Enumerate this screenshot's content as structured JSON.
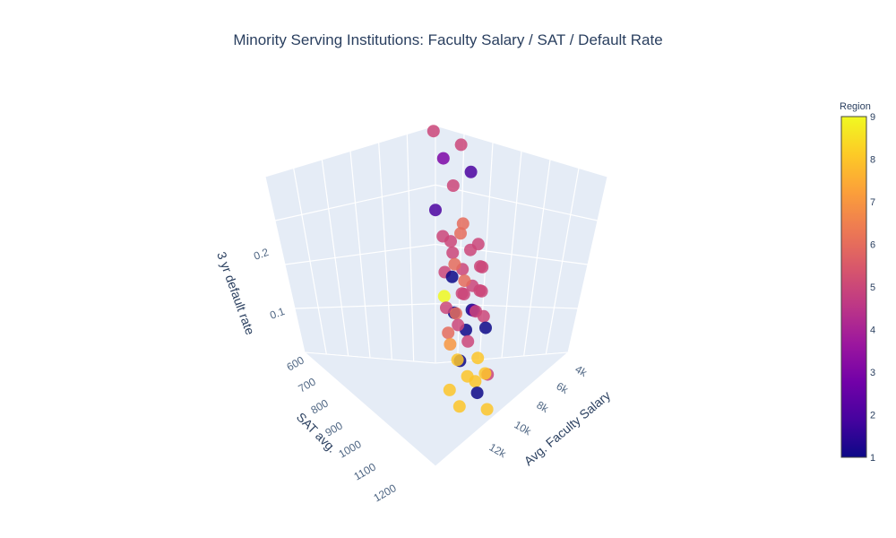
{
  "chart_data": {
    "type": "scatter3d",
    "title": "Minority Serving Institutions: Faculty Salary / SAT / Default Rate",
    "x_label": "Avg. Faculty Salary",
    "y_label": "SAT avg.",
    "z_label": "3 yr default rate",
    "x_ticks": [
      "4k",
      "6k",
      "8k",
      "10k",
      "12k"
    ],
    "y_ticks": [
      "600",
      "700",
      "800",
      "900",
      "1000",
      "1100",
      "1200"
    ],
    "z_ticks": [
      "0.1",
      "0.2"
    ],
    "colorbar": {
      "title": "Region",
      "min": 1,
      "max": 9,
      "ticks": [
        "1",
        "2",
        "3",
        "4",
        "5",
        "6",
        "7",
        "8",
        "9"
      ]
    },
    "colorscale": [
      "#0d0887",
      "#46039f",
      "#7201a8",
      "#9c179e",
      "#bd3786",
      "#d8576b",
      "#ed7953",
      "#fb9f3a",
      "#fdca26",
      "#f0f921"
    ],
    "points": [
      {
        "x": 8,
        "y": 1000,
        "z": 0.28,
        "c": 5
      },
      {
        "x": 8,
        "y": 1000,
        "z": 0.27,
        "c": 5
      },
      {
        "x": 8,
        "y": 1000,
        "z": 0.26,
        "c": 3
      },
      {
        "x": 8,
        "y": 1000,
        "z": 0.25,
        "c": 2
      },
      {
        "x": 8,
        "y": 1000,
        "z": 0.24,
        "c": 5
      },
      {
        "x": 8,
        "y": 1000,
        "z": 0.22,
        "c": 2
      },
      {
        "x": 8,
        "y": 1000,
        "z": 0.21,
        "c": 6
      },
      {
        "x": 8,
        "y": 950,
        "z": 0.19,
        "c": 5
      },
      {
        "x": 8,
        "y": 950,
        "z": 0.19,
        "c": 5
      },
      {
        "x": 8,
        "y": 950,
        "z": 0.18,
        "c": 6
      },
      {
        "x": 8,
        "y": 950,
        "z": 0.18,
        "c": 5
      },
      {
        "x": 8,
        "y": 950,
        "z": 0.17,
        "c": 5
      },
      {
        "x": 8,
        "y": 950,
        "z": 0.17,
        "c": 5
      },
      {
        "x": 8,
        "y": 950,
        "z": 0.16,
        "c": 5
      },
      {
        "x": 8,
        "y": 950,
        "z": 0.16,
        "c": 5
      },
      {
        "x": 8,
        "y": 950,
        "z": 0.16,
        "c": 5
      },
      {
        "x": 8,
        "y": 950,
        "z": 0.15,
        "c": 5
      },
      {
        "x": 8,
        "y": 950,
        "z": 0.15,
        "c": 6
      },
      {
        "x": 8,
        "y": 950,
        "z": 0.15,
        "c": 5
      },
      {
        "x": 8,
        "y": 950,
        "z": 0.14,
        "c": 6
      },
      {
        "x": 8,
        "y": 900,
        "z": 0.14,
        "c": 1
      },
      {
        "x": 8,
        "y": 900,
        "z": 0.13,
        "c": 5
      },
      {
        "x": 8,
        "y": 900,
        "z": 0.13,
        "c": 5
      },
      {
        "x": 8,
        "y": 900,
        "z": 0.13,
        "c": 9
      },
      {
        "x": 8,
        "y": 900,
        "z": 0.12,
        "c": 1
      },
      {
        "x": 8,
        "y": 900,
        "z": 0.12,
        "c": 1
      },
      {
        "x": 8,
        "y": 900,
        "z": 0.12,
        "c": 5
      },
      {
        "x": 8,
        "y": 900,
        "z": 0.12,
        "c": 5
      },
      {
        "x": 8,
        "y": 900,
        "z": 0.11,
        "c": 5
      },
      {
        "x": 8,
        "y": 900,
        "z": 0.11,
        "c": 2
      },
      {
        "x": 8,
        "y": 900,
        "z": 0.11,
        "c": 6
      },
      {
        "x": 8,
        "y": 900,
        "z": 0.11,
        "c": 5
      },
      {
        "x": 8,
        "y": 900,
        "z": 0.1,
        "c": 1
      },
      {
        "x": 8,
        "y": 900,
        "z": 0.1,
        "c": 6
      },
      {
        "x": 8,
        "y": 900,
        "z": 0.1,
        "c": 5
      },
      {
        "x": 8,
        "y": 900,
        "z": 0.09,
        "c": 5
      },
      {
        "x": 8,
        "y": 900,
        "z": 0.09,
        "c": 1
      },
      {
        "x": 8,
        "y": 900,
        "z": 0.08,
        "c": 5
      },
      {
        "x": 8,
        "y": 900,
        "z": 0.08,
        "c": 7
      },
      {
        "x": 8,
        "y": 900,
        "z": 0.07,
        "c": 8
      },
      {
        "x": 8,
        "y": 900,
        "z": 0.07,
        "c": 1
      },
      {
        "x": 8,
        "y": 900,
        "z": 0.06,
        "c": 5
      },
      {
        "x": 8,
        "y": 850,
        "z": 0.05,
        "c": 8
      },
      {
        "x": 8,
        "y": 850,
        "z": 0.05,
        "c": 8
      },
      {
        "x": 8,
        "y": 850,
        "z": 0.04,
        "c": 8
      },
      {
        "x": 8,
        "y": 850,
        "z": 0.04,
        "c": 8
      },
      {
        "x": 8,
        "y": 850,
        "z": 0.03,
        "c": 8
      },
      {
        "x": 8,
        "y": 850,
        "z": 0.03,
        "c": 1
      },
      {
        "x": 8,
        "y": 850,
        "z": 0.02,
        "c": 8
      },
      {
        "x": 8,
        "y": 850,
        "z": 0.02,
        "c": 8
      }
    ]
  }
}
